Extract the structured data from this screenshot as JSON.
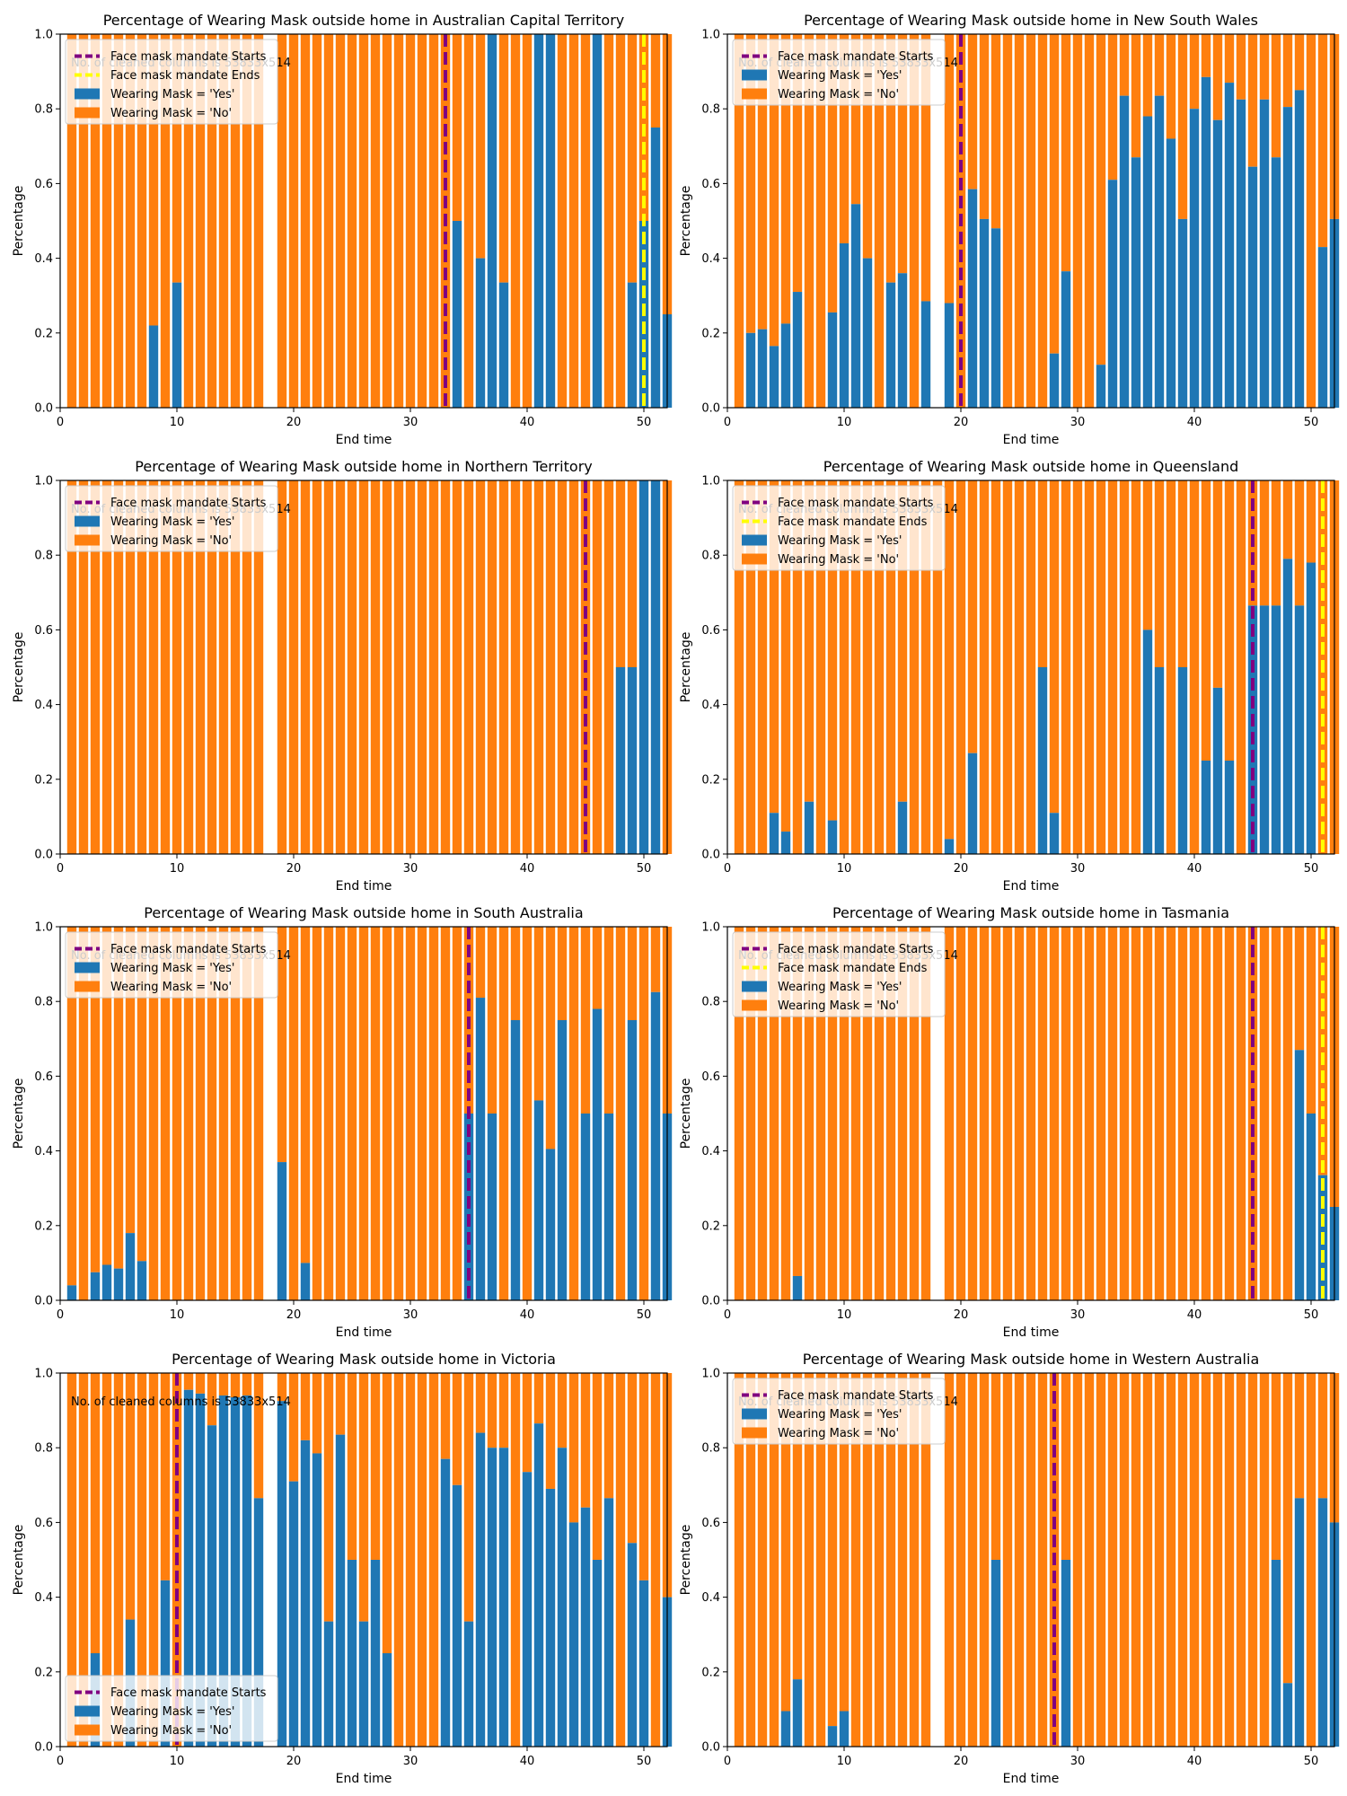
{
  "colors": {
    "yes": "#1f77b4",
    "no": "#ff7f0e",
    "start_line": "#800080",
    "end_line": "#ffff00",
    "axis": "#000000",
    "background": "#ffffff"
  },
  "chart_data": [
    {
      "type": "bar",
      "stacked": true,
      "title": "Percentage of Wearing Mask outside home in Australian Capital Territory",
      "xlabel": "End time",
      "ylabel": "Percentage",
      "xlim": [
        0,
        52
      ],
      "ylim": [
        0,
        1
      ],
      "xticks": [
        "0",
        "10",
        "20",
        "30",
        "40",
        "50"
      ],
      "yticks": [
        "0.0",
        "0.2",
        "0.4",
        "0.6",
        "0.8",
        "1.0"
      ],
      "legend_position": "top-left",
      "legend": [
        "Face mask mandate Starts",
        "Face mask mandate Ends",
        "Wearing Mask = 'Yes'",
        "Wearing Mask = 'No'"
      ],
      "annotation": "No. of cleaned columns is 53833x514",
      "mandate_start": 33,
      "mandate_end": 50,
      "missing_weeks": [
        18
      ],
      "x": [
        1,
        2,
        3,
        4,
        5,
        6,
        7,
        8,
        9,
        10,
        11,
        12,
        13,
        14,
        15,
        16,
        17,
        19,
        20,
        21,
        22,
        23,
        24,
        25,
        26,
        27,
        28,
        29,
        30,
        31,
        32,
        33,
        34,
        35,
        36,
        37,
        38,
        39,
        40,
        41,
        42,
        43,
        44,
        45,
        46,
        47,
        48,
        49,
        50,
        51,
        52
      ],
      "yes": [
        0,
        0,
        0,
        0,
        0,
        0,
        0,
        0.22,
        0,
        0.335,
        0,
        0,
        0,
        0,
        0,
        0,
        0,
        0,
        0,
        0,
        0,
        0,
        0,
        0,
        0,
        0,
        0,
        0,
        0,
        0,
        0,
        0,
        0.5,
        0,
        0.4,
        1.0,
        0.335,
        0,
        0,
        1.0,
        1.0,
        0,
        0,
        0,
        1.0,
        0,
        0,
        0.335,
        0.5,
        0.75,
        0.25
      ]
    },
    {
      "type": "bar",
      "stacked": true,
      "title": "Percentage of Wearing Mask outside home in New South Wales",
      "xlabel": "End time",
      "ylabel": "Percentage",
      "xlim": [
        0,
        52
      ],
      "ylim": [
        0,
        1
      ],
      "xticks": [
        "0",
        "10",
        "20",
        "30",
        "40",
        "50"
      ],
      "yticks": [
        "0.0",
        "0.2",
        "0.4",
        "0.6",
        "0.8",
        "1.0"
      ],
      "legend_position": "top-left",
      "legend": [
        "Face mask mandate Starts",
        "Wearing Mask = 'Yes'",
        "Wearing Mask = 'No'"
      ],
      "annotation": "No. of cleaned columns is 53833x514",
      "mandate_start": 20,
      "mandate_end": null,
      "missing_weeks": [
        18
      ],
      "x": [
        1,
        2,
        3,
        4,
        5,
        6,
        7,
        8,
        9,
        10,
        11,
        12,
        13,
        14,
        15,
        16,
        17,
        19,
        20,
        21,
        22,
        23,
        24,
        25,
        26,
        27,
        28,
        29,
        30,
        31,
        32,
        33,
        34,
        35,
        36,
        37,
        38,
        39,
        40,
        41,
        42,
        43,
        44,
        45,
        46,
        47,
        48,
        49,
        50,
        51,
        52
      ],
      "yes": [
        0,
        0.2,
        0.21,
        0.165,
        0.225,
        0.31,
        0,
        0,
        0.255,
        0.44,
        0.545,
        0.4,
        0,
        0.335,
        0.36,
        0,
        0.285,
        0.28,
        0,
        0.585,
        0.505,
        0.48,
        0,
        0,
        0,
        0,
        0.145,
        0.365,
        0,
        0,
        0.115,
        0.61,
        0.835,
        0.67,
        0.78,
        0.835,
        0.72,
        0.505,
        0.8,
        0.885,
        0.77,
        0.87,
        0.825,
        0.645,
        0.825,
        0.67,
        0.805,
        0.85,
        0,
        0.43,
        0.505
      ]
    },
    {
      "type": "bar",
      "stacked": true,
      "title": "Percentage of Wearing Mask outside home in Northern Territory",
      "xlabel": "End time",
      "ylabel": "Percentage",
      "xlim": [
        0,
        52
      ],
      "ylim": [
        0,
        1
      ],
      "xticks": [
        "0",
        "10",
        "20",
        "30",
        "40",
        "50"
      ],
      "yticks": [
        "0.0",
        "0.2",
        "0.4",
        "0.6",
        "0.8",
        "1.0"
      ],
      "legend_position": "top-left",
      "legend": [
        "Face mask mandate Starts",
        "Wearing Mask = 'Yes'",
        "Wearing Mask = 'No'"
      ],
      "annotation": "No. of cleaned columns is 53833x514",
      "mandate_start": 45,
      "mandate_end": null,
      "missing_weeks": [
        18
      ],
      "x": [
        1,
        2,
        3,
        4,
        5,
        6,
        7,
        8,
        9,
        10,
        11,
        12,
        13,
        14,
        15,
        16,
        17,
        19,
        20,
        21,
        22,
        23,
        24,
        25,
        26,
        27,
        28,
        29,
        30,
        31,
        32,
        33,
        34,
        35,
        36,
        37,
        38,
        39,
        40,
        41,
        42,
        43,
        44,
        45,
        46,
        47,
        48,
        49,
        50,
        51,
        52
      ],
      "yes": [
        0,
        0,
        0,
        0,
        0,
        0,
        0,
        0,
        0,
        0,
        0,
        0,
        0,
        0,
        0,
        0,
        0,
        0,
        0,
        0,
        0,
        0,
        0,
        0,
        0,
        0,
        0,
        0,
        0,
        0,
        0,
        0,
        0,
        0,
        0,
        0,
        0,
        0,
        0,
        0,
        0,
        0,
        0,
        0,
        0,
        0,
        0.5,
        0.5,
        1.0,
        1.0,
        0
      ]
    },
    {
      "type": "bar",
      "stacked": true,
      "title": "Percentage of Wearing Mask outside home in Queensland",
      "xlabel": "End time",
      "ylabel": "Percentage",
      "xlim": [
        0,
        52
      ],
      "ylim": [
        0,
        1
      ],
      "xticks": [
        "0",
        "10",
        "20",
        "30",
        "40",
        "50"
      ],
      "yticks": [
        "0.0",
        "0.2",
        "0.4",
        "0.6",
        "0.8",
        "1.0"
      ],
      "legend_position": "top-left",
      "legend": [
        "Face mask mandate Starts",
        "Face mask mandate Ends",
        "Wearing Mask = 'Yes'",
        "Wearing Mask = 'No'"
      ],
      "annotation": "No. of cleaned columns is 53833x514",
      "mandate_start": 45,
      "mandate_end": 51,
      "missing_weeks": [],
      "x": [
        1,
        2,
        3,
        4,
        5,
        6,
        7,
        8,
        9,
        10,
        11,
        12,
        13,
        14,
        15,
        16,
        17,
        18,
        19,
        20,
        21,
        22,
        23,
        24,
        25,
        26,
        27,
        28,
        29,
        30,
        31,
        32,
        33,
        34,
        35,
        36,
        37,
        38,
        39,
        40,
        41,
        42,
        43,
        44,
        45,
        46,
        47,
        48,
        49,
        50,
        51,
        52
      ],
      "yes": [
        0,
        0,
        0,
        0.11,
        0.06,
        0,
        0.14,
        0,
        0.09,
        0,
        0,
        0,
        0,
        0,
        0.14,
        0,
        0,
        0,
        0.04,
        0,
        0.27,
        0,
        0,
        0,
        0,
        0,
        0.5,
        0.11,
        0,
        0,
        0,
        0,
        0,
        0,
        0,
        0.6,
        0.5,
        0,
        0.5,
        0,
        0.25,
        0.445,
        0.25,
        0,
        0.665,
        0.665,
        0.665,
        0.79,
        0.665,
        0.78,
        0,
        0
      ]
    },
    {
      "type": "bar",
      "stacked": true,
      "title": "Percentage of Wearing Mask outside home in South Australia",
      "xlabel": "End time",
      "ylabel": "Percentage",
      "xlim": [
        0,
        52
      ],
      "ylim": [
        0,
        1
      ],
      "xticks": [
        "0",
        "10",
        "20",
        "30",
        "40",
        "50"
      ],
      "yticks": [
        "0.0",
        "0.2",
        "0.4",
        "0.6",
        "0.8",
        "1.0"
      ],
      "legend_position": "top-left",
      "legend": [
        "Face mask mandate Starts",
        "Wearing Mask = 'Yes'",
        "Wearing Mask = 'No'"
      ],
      "annotation": "No. of cleaned columns is 53833x514",
      "mandate_start": 35,
      "mandate_end": null,
      "missing_weeks": [
        18
      ],
      "x": [
        1,
        2,
        3,
        4,
        5,
        6,
        7,
        8,
        9,
        10,
        11,
        12,
        13,
        14,
        15,
        16,
        17,
        19,
        20,
        21,
        22,
        23,
        24,
        25,
        26,
        27,
        28,
        29,
        30,
        31,
        32,
        33,
        34,
        35,
        36,
        37,
        38,
        39,
        40,
        41,
        42,
        43,
        44,
        45,
        46,
        47,
        48,
        49,
        50,
        51,
        52
      ],
      "yes": [
        0.04,
        0,
        0.075,
        0.095,
        0.085,
        0.18,
        0.105,
        0,
        0,
        0,
        0,
        0,
        0,
        0,
        0,
        0,
        0,
        0.37,
        0,
        0.1,
        0,
        0,
        0,
        0,
        0,
        0,
        0,
        0,
        0,
        0,
        0,
        0,
        0,
        0.5,
        0.81,
        0.5,
        0,
        0.75,
        0,
        0.535,
        0.405,
        0.75,
        0,
        0.5,
        0.78,
        0.5,
        0,
        0.75,
        0,
        0.825,
        0.5
      ]
    },
    {
      "type": "bar",
      "stacked": true,
      "title": "Percentage of Wearing Mask outside home in Tasmania",
      "xlabel": "End time",
      "ylabel": "Percentage",
      "xlim": [
        0,
        52
      ],
      "ylim": [
        0,
        1
      ],
      "xticks": [
        "0",
        "10",
        "20",
        "30",
        "40",
        "50"
      ],
      "yticks": [
        "0.0",
        "0.2",
        "0.4",
        "0.6",
        "0.8",
        "1.0"
      ],
      "legend_position": "top-left",
      "legend": [
        "Face mask mandate Starts",
        "Face mask mandate Ends",
        "Wearing Mask = 'Yes'",
        "Wearing Mask = 'No'"
      ],
      "annotation": "No. of cleaned columns is 53833x514",
      "mandate_start": 45,
      "mandate_end": 51,
      "missing_weeks": [
        18
      ],
      "x": [
        1,
        2,
        3,
        4,
        5,
        6,
        7,
        8,
        9,
        10,
        11,
        12,
        13,
        14,
        15,
        16,
        17,
        19,
        20,
        21,
        22,
        23,
        24,
        25,
        26,
        27,
        28,
        29,
        30,
        31,
        32,
        33,
        34,
        35,
        36,
        37,
        38,
        39,
        40,
        41,
        42,
        43,
        44,
        45,
        46,
        47,
        48,
        49,
        50,
        51,
        52
      ],
      "yes": [
        0,
        0,
        0,
        0,
        0,
        0.065,
        0,
        0,
        0,
        0,
        0,
        0,
        0,
        0,
        0,
        0,
        0,
        0,
        0,
        0,
        0,
        0,
        0,
        0,
        0,
        0,
        0,
        0,
        0,
        0,
        0,
        0,
        0,
        0,
        0,
        0,
        0,
        0,
        0,
        0,
        0,
        0,
        0,
        0,
        0,
        0,
        0,
        0.67,
        0.5,
        0.335,
        0.25
      ]
    },
    {
      "type": "bar",
      "stacked": true,
      "title": "Percentage of Wearing Mask outside home in Victoria",
      "xlabel": "End time",
      "ylabel": "Percentage",
      "xlim": [
        0,
        52
      ],
      "ylim": [
        0,
        1
      ],
      "xticks": [
        "0",
        "10",
        "20",
        "30",
        "40",
        "50"
      ],
      "yticks": [
        "0.0",
        "0.2",
        "0.4",
        "0.6",
        "0.8",
        "1.0"
      ],
      "legend_position": "bottom-left",
      "legend": [
        "Face mask mandate Starts",
        "Wearing Mask = 'Yes'",
        "Wearing Mask = 'No'"
      ],
      "annotation": "No. of cleaned columns is 53833x514",
      "mandate_start": 10,
      "mandate_end": null,
      "missing_weeks": [
        18
      ],
      "x": [
        1,
        2,
        3,
        4,
        5,
        6,
        7,
        8,
        9,
        10,
        11,
        12,
        13,
        14,
        15,
        16,
        17,
        19,
        20,
        21,
        22,
        23,
        24,
        25,
        26,
        27,
        28,
        29,
        30,
        31,
        32,
        33,
        34,
        35,
        36,
        37,
        38,
        39,
        40,
        41,
        42,
        43,
        44,
        45,
        46,
        47,
        48,
        49,
        50,
        51,
        52
      ],
      "yes": [
        0,
        0,
        0.25,
        0,
        0,
        0.34,
        0,
        0,
        0.445,
        0,
        0.955,
        0.945,
        0.86,
        0.94,
        0.935,
        0.94,
        0.665,
        0.925,
        0.71,
        0.82,
        0.785,
        0.335,
        0.835,
        0.5,
        0.335,
        0.5,
        0.25,
        0,
        0,
        0,
        0,
        0.77,
        0.7,
        0.335,
        0.84,
        0.8,
        0.8,
        0,
        0.735,
        0.865,
        0.69,
        0.8,
        0.6,
        0.64,
        0.5,
        0.665,
        0,
        0.545,
        0.445,
        0,
        0.4
      ]
    },
    {
      "type": "bar",
      "stacked": true,
      "title": "Percentage of Wearing Mask outside home in Western Australia",
      "xlabel": "End time",
      "ylabel": "Percentage",
      "xlim": [
        0,
        52
      ],
      "ylim": [
        0,
        1
      ],
      "xticks": [
        "0",
        "10",
        "20",
        "30",
        "40",
        "50"
      ],
      "yticks": [
        "0.0",
        "0.2",
        "0.4",
        "0.6",
        "0.8",
        "1.0"
      ],
      "legend_position": "top-left",
      "legend": [
        "Face mask mandate Starts",
        "Wearing Mask = 'Yes'",
        "Wearing Mask = 'No'"
      ],
      "annotation": "No. of cleaned columns is 53833x514",
      "mandate_start": 28,
      "mandate_end": null,
      "missing_weeks": [
        18
      ],
      "x": [
        1,
        2,
        3,
        4,
        5,
        6,
        7,
        8,
        9,
        10,
        11,
        12,
        13,
        14,
        15,
        16,
        17,
        19,
        20,
        21,
        22,
        23,
        24,
        25,
        26,
        27,
        28,
        29,
        30,
        31,
        32,
        33,
        34,
        35,
        36,
        37,
        38,
        39,
        40,
        41,
        42,
        43,
        44,
        45,
        46,
        47,
        48,
        49,
        50,
        51,
        52
      ],
      "yes": [
        0,
        0,
        0,
        0,
        0.095,
        0.18,
        0,
        0,
        0.055,
        0.095,
        0,
        0,
        0,
        0,
        0,
        0,
        0,
        0,
        0,
        0,
        0,
        0.5,
        0,
        0,
        0,
        0,
        0,
        0.5,
        0,
        0,
        0,
        0,
        0,
        0,
        0,
        0,
        0,
        0,
        0,
        0,
        0,
        0,
        0,
        0,
        0,
        0.5,
        0.17,
        0.665,
        0,
        0.665,
        0.6
      ]
    }
  ]
}
